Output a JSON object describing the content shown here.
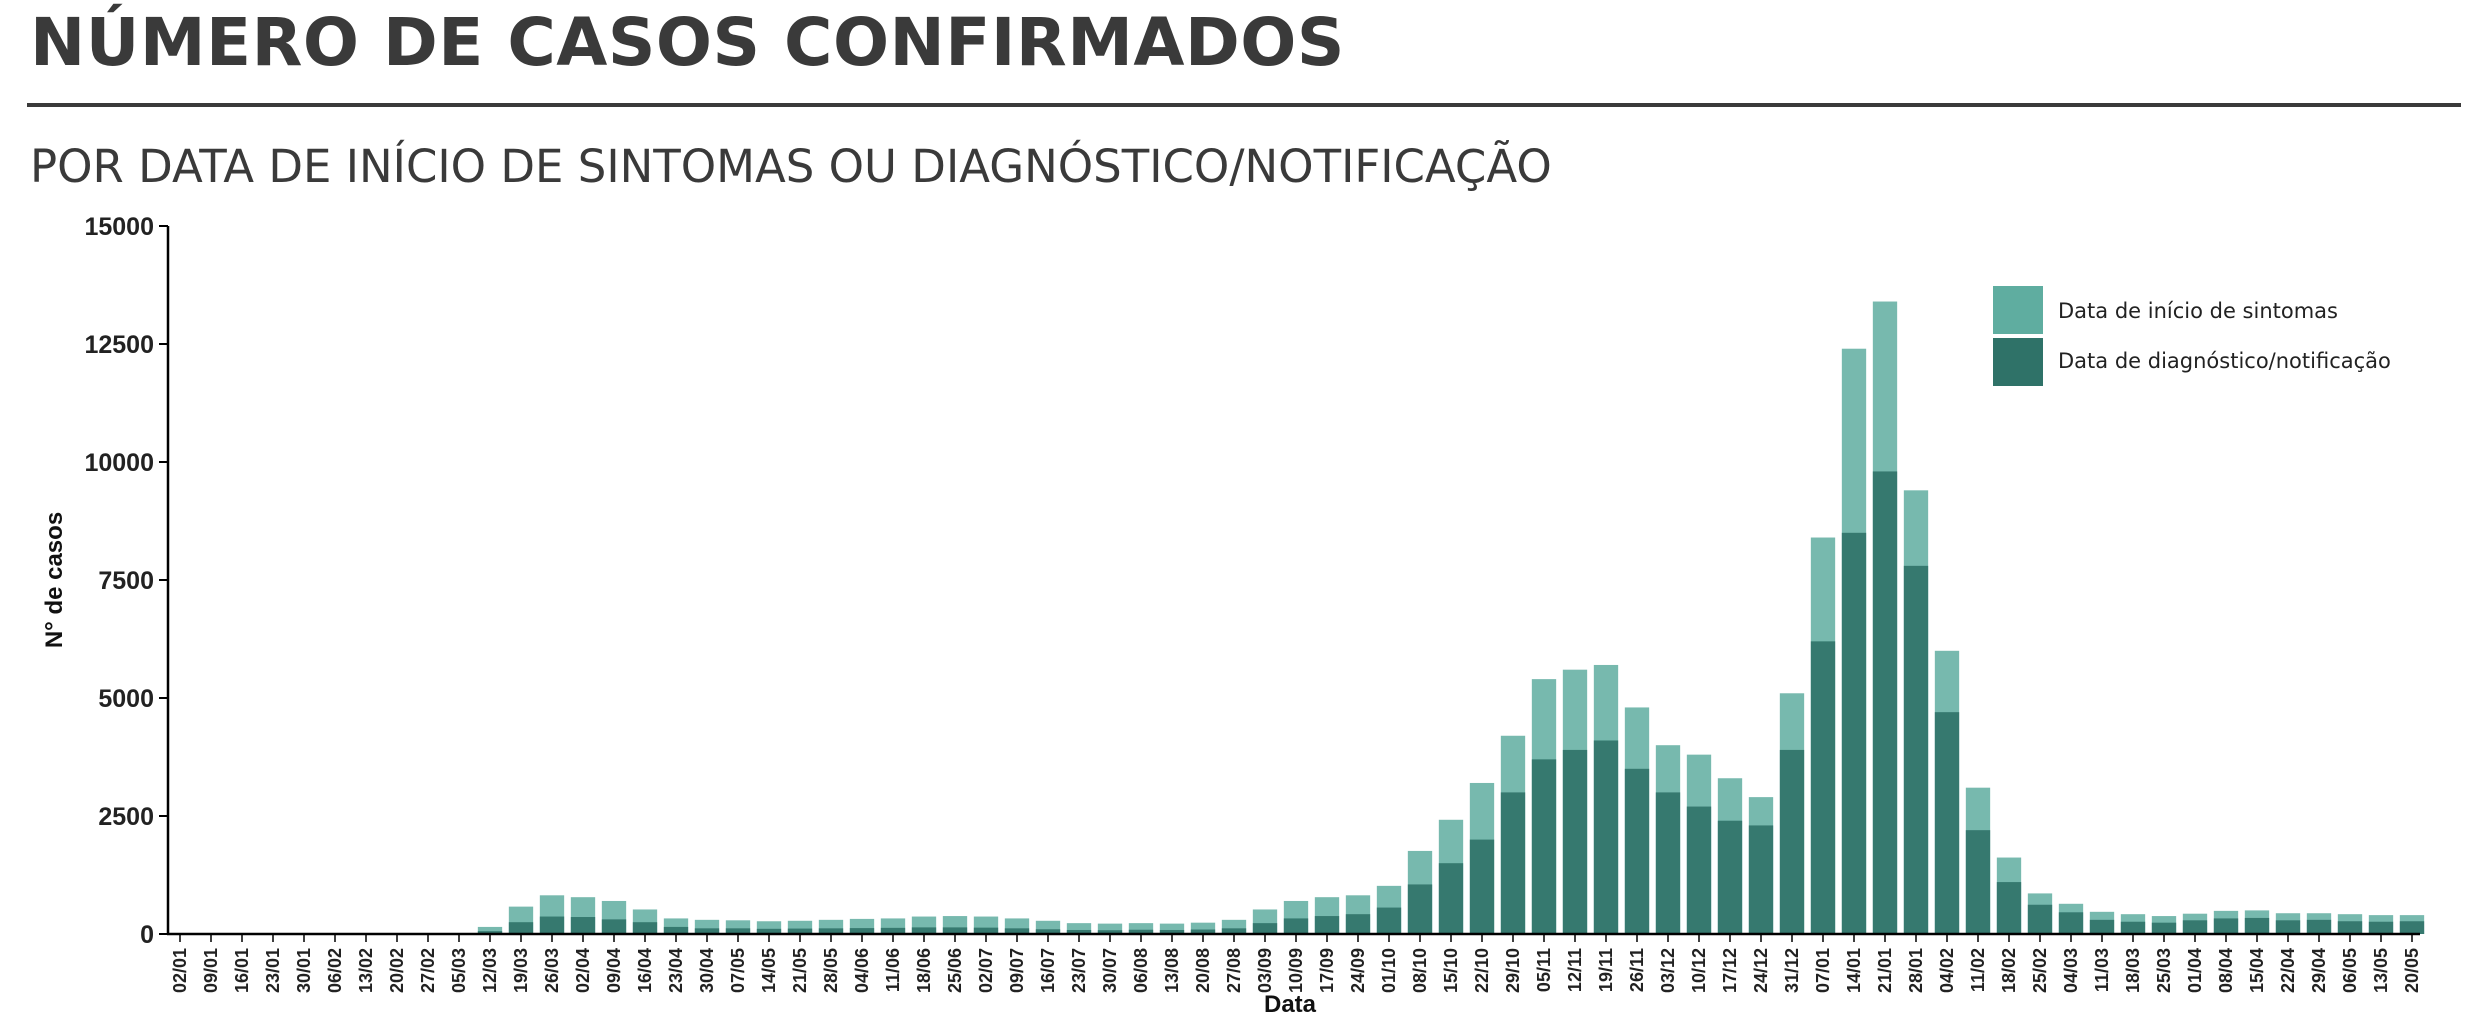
{
  "header": {
    "title": "NÚMERO DE CASOS CONFIRMADOS",
    "subtitle": "POR DATA DE INÍCIO DE SINTOMAS OU DIAGNÓSTICO/NOTIFICAÇÃO"
  },
  "chart_data": {
    "type": "bar",
    "xlabel": "Data",
    "ylabel": "N° de casos",
    "ylim": [
      0,
      15000
    ],
    "yticks": [
      0,
      2500,
      5000,
      7500,
      10000,
      12500,
      15000
    ],
    "categories": [
      "02/01",
      "09/01",
      "16/01",
      "23/01",
      "30/01",
      "06/02",
      "13/02",
      "20/02",
      "27/02",
      "05/03",
      "12/03",
      "19/03",
      "26/03",
      "02/04",
      "09/04",
      "16/04",
      "23/04",
      "30/04",
      "07/05",
      "14/05",
      "21/05",
      "28/05",
      "04/06",
      "11/06",
      "18/06",
      "25/06",
      "02/07",
      "09/07",
      "16/07",
      "23/07",
      "30/07",
      "06/08",
      "13/08",
      "20/08",
      "27/08",
      "03/09",
      "10/09",
      "17/09",
      "24/09",
      "01/10",
      "08/10",
      "15/10",
      "22/10",
      "29/10",
      "05/11",
      "12/11",
      "19/11",
      "26/11",
      "03/12",
      "10/12",
      "17/12",
      "24/12",
      "31/12",
      "07/01",
      "14/01",
      "21/01",
      "28/01",
      "04/02",
      "11/02",
      "18/02",
      "25/02",
      "04/03",
      "11/03",
      "18/03",
      "25/03",
      "01/04",
      "08/04",
      "15/04",
      "22/04",
      "29/04",
      "06/05",
      "13/05",
      "20/05"
    ],
    "legend_position": "top-right",
    "series": [
      {
        "name": "Data de início de sintomas",
        "color": "#5fada0",
        "values": [
          0,
          0,
          0,
          0,
          0,
          0,
          0,
          0,
          0,
          5,
          150,
          580,
          820,
          780,
          700,
          520,
          330,
          300,
          290,
          270,
          280,
          300,
          320,
          330,
          370,
          380,
          370,
          330,
          280,
          230,
          220,
          230,
          220,
          240,
          300,
          520,
          700,
          780,
          820,
          1020,
          1760,
          2420,
          3200,
          4200,
          5400,
          5600,
          5700,
          4800,
          4000,
          3800,
          3300,
          2900,
          5100,
          8400,
          12400,
          13400,
          9400,
          6000,
          3100,
          1620,
          860,
          640,
          470,
          420,
          380,
          430,
          490,
          500,
          440,
          440,
          420,
          400,
          400
        ]
      },
      {
        "name": "Data de diagnóstico/notificação",
        "color": "#2f7268",
        "values": [
          0,
          0,
          0,
          0,
          0,
          0,
          0,
          0,
          0,
          0,
          60,
          250,
          370,
          360,
          310,
          250,
          150,
          120,
          120,
          110,
          115,
          120,
          125,
          130,
          140,
          140,
          135,
          120,
          100,
          85,
          80,
          90,
          85,
          95,
          120,
          230,
          330,
          380,
          420,
          560,
          1050,
          1500,
          2000,
          3000,
          3700,
          3900,
          4100,
          3500,
          3000,
          2700,
          2400,
          2300,
          3900,
          6200,
          8500,
          9800,
          7800,
          4700,
          2200,
          1100,
          620,
          460,
          300,
          260,
          240,
          290,
          330,
          340,
          290,
          300,
          270,
          260,
          270
        ]
      }
    ]
  }
}
